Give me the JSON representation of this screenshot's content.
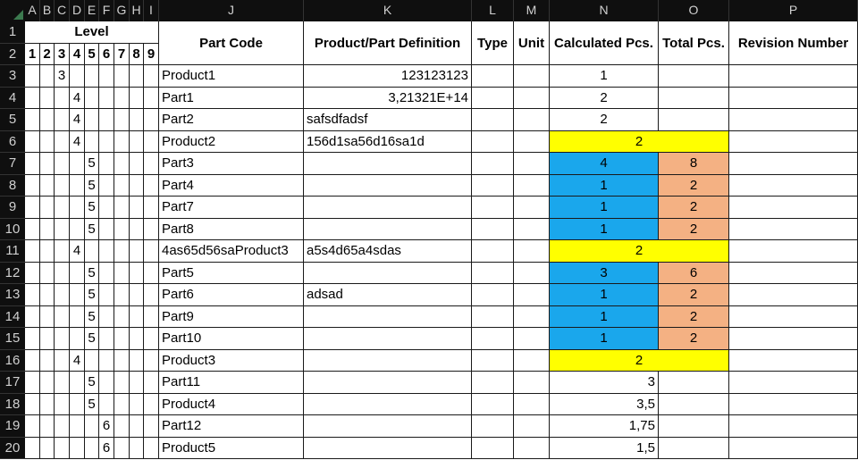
{
  "columns": [
    "A",
    "B",
    "C",
    "D",
    "E",
    "F",
    "G",
    "H",
    "I",
    "J",
    "K",
    "L",
    "M",
    "N",
    "O",
    "P"
  ],
  "header": {
    "level": "Level",
    "level_numbers": [
      "1",
      "2",
      "3",
      "4",
      "5",
      "6",
      "7",
      "8",
      "9"
    ],
    "part_code": "Part Code",
    "definition": "Product/Part Definition",
    "type": "Type",
    "unit": "Unit",
    "calc_pcs": "Calculated Pcs.",
    "total_pcs": "Total Pcs.",
    "revision": "Revision Number"
  },
  "row_numbers": [
    "1",
    "2",
    "3",
    "4",
    "5",
    "6",
    "7",
    "8",
    "9",
    "10",
    "11",
    "12",
    "13",
    "14",
    "15",
    "16",
    "17",
    "18",
    "19",
    "20"
  ],
  "rows": [
    {
      "level": 3,
      "level_value": "3",
      "part_code": "Product1",
      "definition": "123123123",
      "def_align": "right",
      "calc": "1",
      "calc_style": "center",
      "total": ""
    },
    {
      "level": 4,
      "level_value": "4",
      "part_code": "Part1",
      "definition": "3,21321E+14",
      "def_align": "right",
      "calc": "2",
      "calc_style": "center",
      "total": ""
    },
    {
      "level": 4,
      "level_value": "4",
      "part_code": "Part2",
      "definition": "safsdfadsf",
      "def_align": "left",
      "calc": "2",
      "calc_style": "center",
      "total": ""
    },
    {
      "level": 4,
      "level_value": "4",
      "part_code": "Product2",
      "definition": "156d1sa56d16sa1d",
      "def_align": "left",
      "calc": "2",
      "calc_style": "yellow",
      "total": ""
    },
    {
      "level": 5,
      "level_value": "5",
      "part_code": "Part3",
      "definition": "",
      "def_align": "left",
      "calc": "4",
      "calc_style": "blue",
      "total": "8"
    },
    {
      "level": 5,
      "level_value": "5",
      "part_code": "Part4",
      "definition": "",
      "def_align": "left",
      "calc": "1",
      "calc_style": "blue",
      "total": "2"
    },
    {
      "level": 5,
      "level_value": "5",
      "part_code": "Part7",
      "definition": "",
      "def_align": "left",
      "calc": "1",
      "calc_style": "blue",
      "total": "2"
    },
    {
      "level": 5,
      "level_value": "5",
      "part_code": "Part8",
      "definition": "",
      "def_align": "left",
      "calc": "1",
      "calc_style": "blue",
      "total": "2"
    },
    {
      "level": 4,
      "level_value": "4",
      "part_code": "4as65d56saProduct3",
      "definition": "a5s4d65a4sdas",
      "def_align": "left",
      "calc": "2",
      "calc_style": "yellow",
      "total": ""
    },
    {
      "level": 5,
      "level_value": "5",
      "part_code": "Part5",
      "definition": "",
      "def_align": "left",
      "calc": "3",
      "calc_style": "blue",
      "total": "6"
    },
    {
      "level": 5,
      "level_value": "5",
      "part_code": "Part6",
      "definition": "adsad",
      "def_align": "left",
      "calc": "1",
      "calc_style": "blue",
      "total": "2"
    },
    {
      "level": 5,
      "level_value": "5",
      "part_code": "Part9",
      "definition": "",
      "def_align": "left",
      "calc": "1",
      "calc_style": "blue",
      "total": "2"
    },
    {
      "level": 5,
      "level_value": "5",
      "part_code": "Part10",
      "definition": "",
      "def_align": "left",
      "calc": "1",
      "calc_style": "blue",
      "total": "2"
    },
    {
      "level": 4,
      "level_value": "4",
      "part_code": "Product3",
      "definition": "",
      "def_align": "left",
      "calc": "2",
      "calc_style": "yellow",
      "total": ""
    },
    {
      "level": 5,
      "level_value": "5",
      "part_code": "Part11",
      "definition": "",
      "def_align": "left",
      "calc": "3",
      "calc_style": "right",
      "total": ""
    },
    {
      "level": 5,
      "level_value": "5",
      "part_code": "Product4",
      "definition": "",
      "def_align": "left",
      "calc": "3,5",
      "calc_style": "right",
      "total": ""
    },
    {
      "level": 6,
      "level_value": "6",
      "part_code": "Part12",
      "definition": "",
      "def_align": "left",
      "calc": "1,75",
      "calc_style": "right",
      "total": ""
    },
    {
      "level": 6,
      "level_value": "6",
      "part_code": "Product5",
      "definition": "",
      "def_align": "left",
      "calc": "1,5",
      "calc_style": "right",
      "total": ""
    }
  ],
  "colors": {
    "highlight_yellow": "#ffff00",
    "highlight_blue": "#1aa7ec",
    "highlight_salmon": "#f4b183",
    "header_bg": "#0f0f0f"
  }
}
